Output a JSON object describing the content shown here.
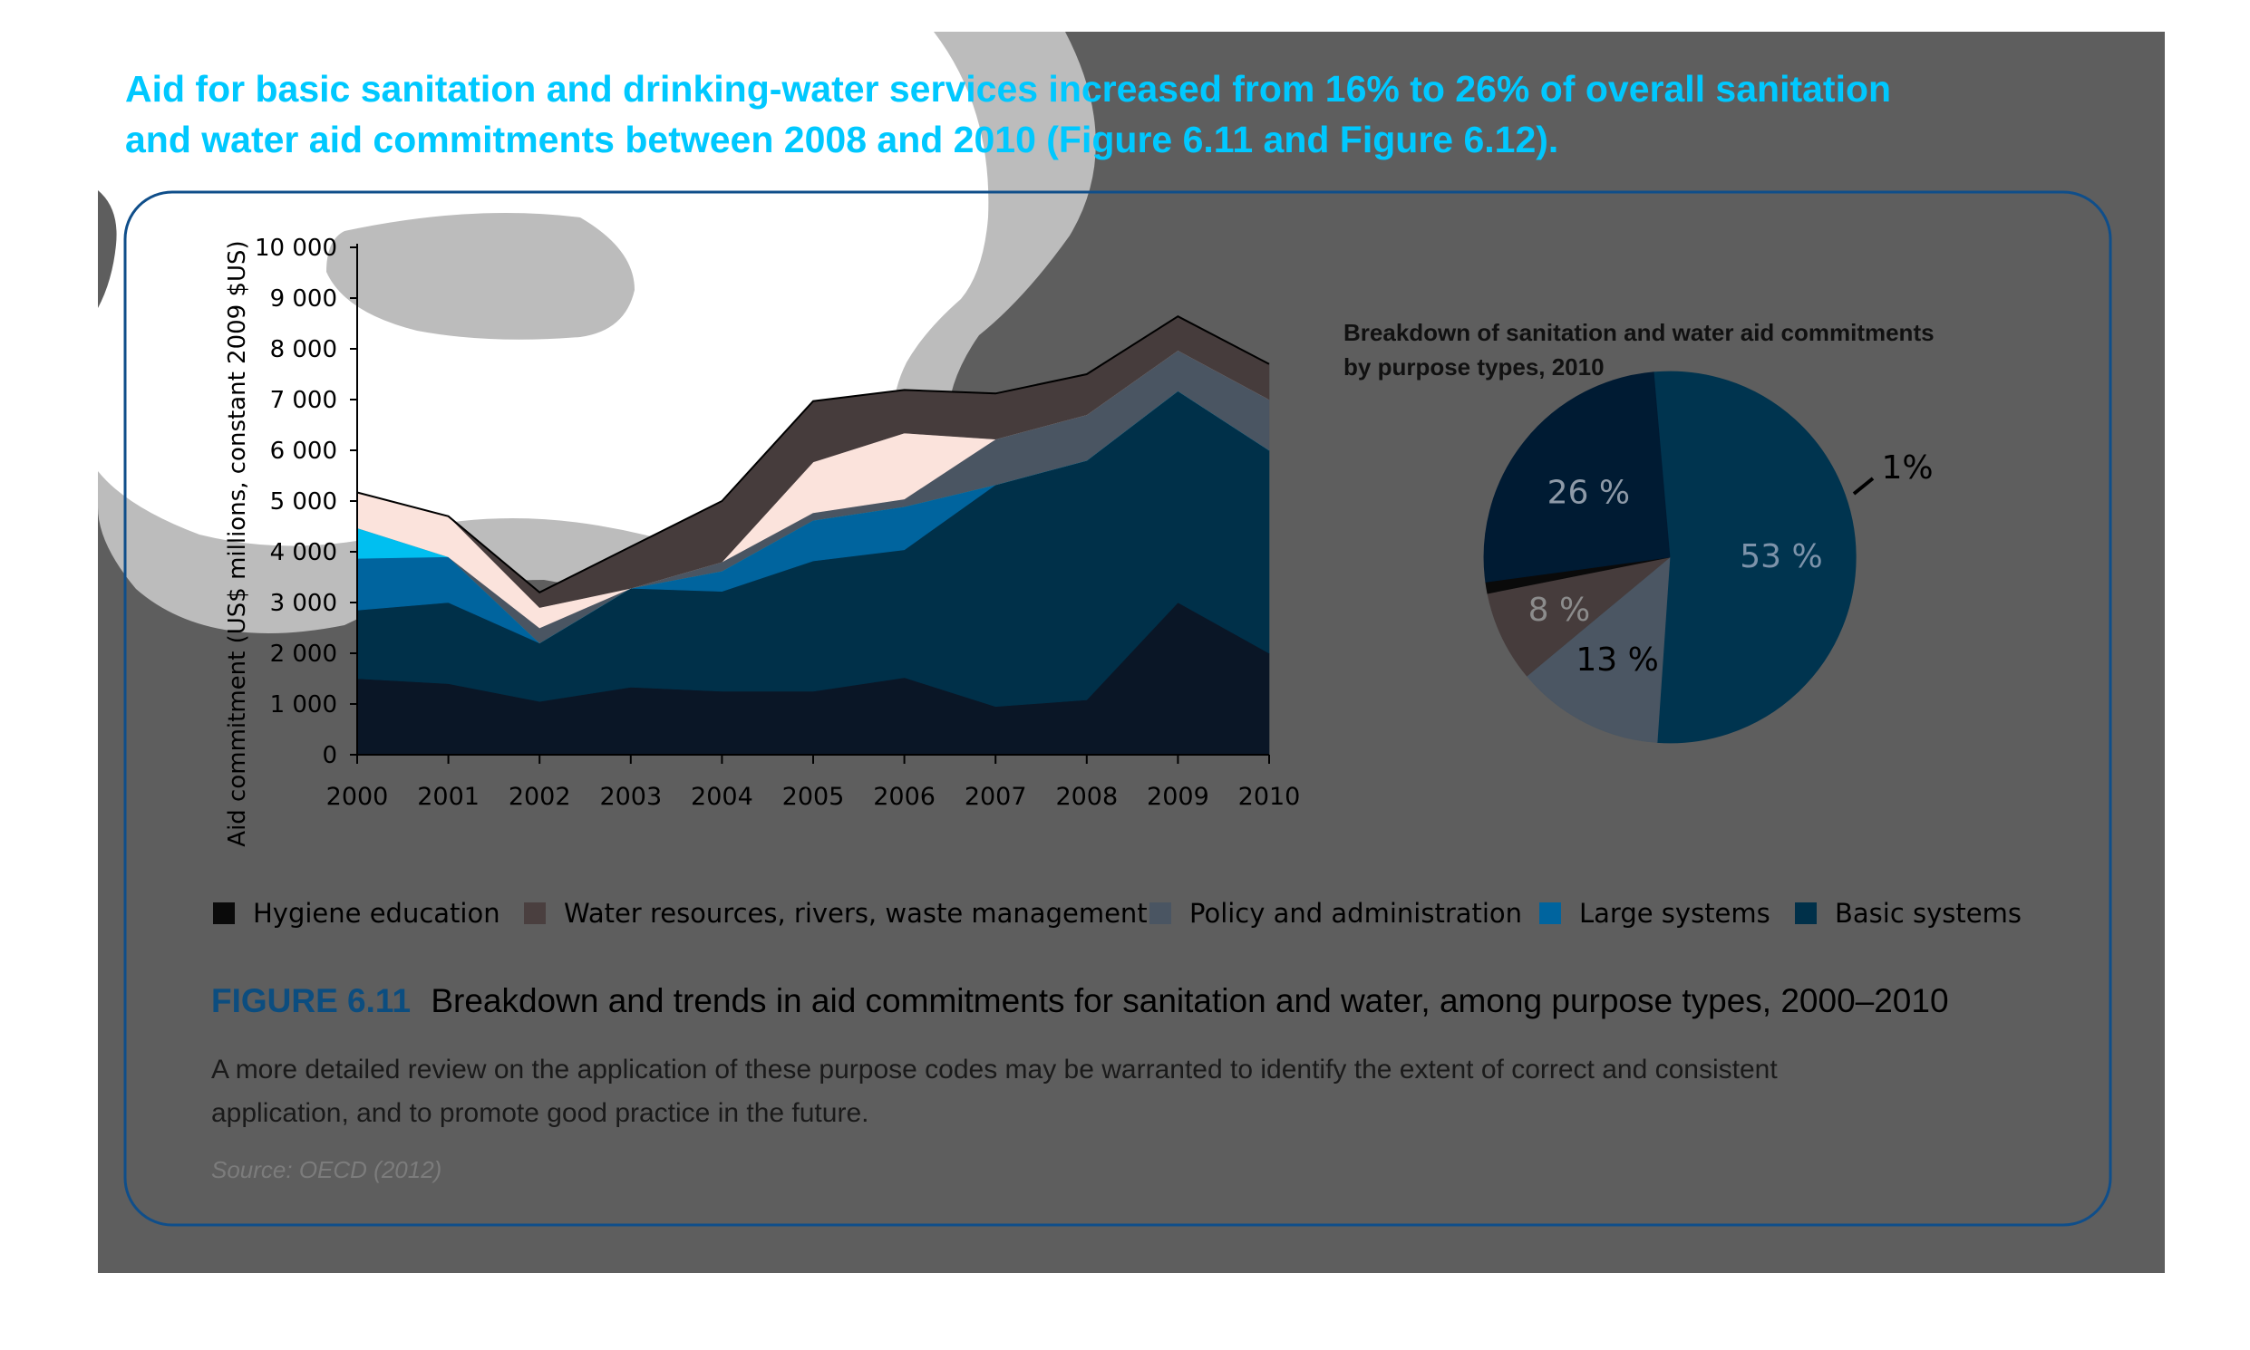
{
  "intro": {
    "line1": "Aid for basic sanitation and drinking-water services increased from 16% to 26% of overall sanitation",
    "line2": "and water aid commitments between 2008 and 2010 (Figure 6.11 and Figure 6.12)."
  },
  "figure": {
    "number": "FIGURE 6.11",
    "title": "Breakdown and trends in aid commitments for sanitation and water, among purpose types, 2000–2010",
    "note_line1": "A more detailed review on the application of these purpose codes may be warranted to identify the extent of correct and consistent",
    "note_line2": "application, and to promote good practice in the future.",
    "source": "Source: OECD (2012)"
  },
  "colors": {
    "background_dark": "#5e5e5e",
    "frame": "#0f4e8a",
    "intro_text": "#00c8ff",
    "caption_accent": "#0c4d7f",
    "hygiene": "#0a1626",
    "water_resources": "#463c3c",
    "policy": "#4a5562",
    "large_systems": "#00649e",
    "basic_systems": "#003049"
  },
  "chart_data": [
    {
      "type": "area",
      "stacked": true,
      "ylabel": "Aid commitment (US$ millions, constant 2009 $US)",
      "ylim": [
        0,
        10000
      ],
      "yticks": [
        0,
        1000,
        2000,
        3000,
        4000,
        5000,
        6000,
        7000,
        8000,
        9000,
        10000
      ],
      "ytick_labels": [
        "0",
        "1 000",
        "2 000",
        "3 000",
        "4 000",
        "5 000",
        "6 000",
        "7 000",
        "8 000",
        "9 000",
        "10 000"
      ],
      "x": [
        "2000",
        "2001",
        "2002",
        "2003",
        "2004",
        "2005",
        "2006",
        "2007",
        "2008",
        "2009",
        "2010"
      ],
      "legend_position": "bottom",
      "legend": [
        {
          "name": "Hygiene education",
          "color": "#0a0a0a"
        },
        {
          "name": "Water resources, rivers, waste management",
          "color": "#4a3f3f"
        },
        {
          "name": "Policy and administration",
          "color": "#4a5562"
        },
        {
          "name": "Large systems",
          "color": "#00649e"
        },
        {
          "name": "Basic systems",
          "color": "#003049"
        }
      ],
      "series": [
        {
          "id": "s1",
          "values": [
            1500,
            1400,
            1050,
            1330,
            1250,
            1250,
            1520,
            950,
            1080,
            3000,
            2000
          ],
          "color": "#0a1626"
        },
        {
          "id": "s2",
          "values": [
            1350,
            1600,
            1150,
            1950,
            1970,
            2570,
            2520,
            4370,
            4720,
            4170,
            4000
          ],
          "color": "#003049"
        },
        {
          "id": "s3",
          "values": [
            1020,
            900,
            0,
            0,
            400,
            800,
            850,
            0,
            0,
            0,
            0
          ],
          "color": "#00649e"
        },
        {
          "id": "s4",
          "values": [
            600,
            0,
            0,
            0,
            0,
            0,
            0,
            0,
            0,
            0,
            0
          ],
          "color": "#00bff0"
        },
        {
          "id": "s5",
          "values": [
            0,
            0,
            300,
            0,
            180,
            150,
            150,
            900,
            900,
            800,
            1000
          ],
          "color": "#4a5562"
        },
        {
          "id": "s6",
          "values": [
            700,
            800,
            400,
            0,
            0,
            1000,
            1300,
            0,
            0,
            0,
            0
          ],
          "color": "#fbe3dc"
        },
        {
          "id": "s7",
          "values": [
            0,
            0,
            300,
            820,
            1200,
            1200,
            850,
            900,
            800,
            670,
            700
          ],
          "color": "#463c3c"
        }
      ]
    },
    {
      "type": "pie",
      "title_line1": "Breakdown of sanitation and water aid commitments",
      "title_line2": "by purpose types, 2010",
      "slices": [
        {
          "label": "53 %",
          "value": 53,
          "color": "#00344f"
        },
        {
          "label": "13 %",
          "value": 13,
          "color": "#4b5663"
        },
        {
          "label": "8 %",
          "value": 8,
          "color": "#463c3c"
        },
        {
          "label": "1%",
          "value": 1,
          "color": "#0a0a0a"
        },
        {
          "label": "26 %",
          "value": 26,
          "color": "#001b33"
        }
      ]
    }
  ]
}
